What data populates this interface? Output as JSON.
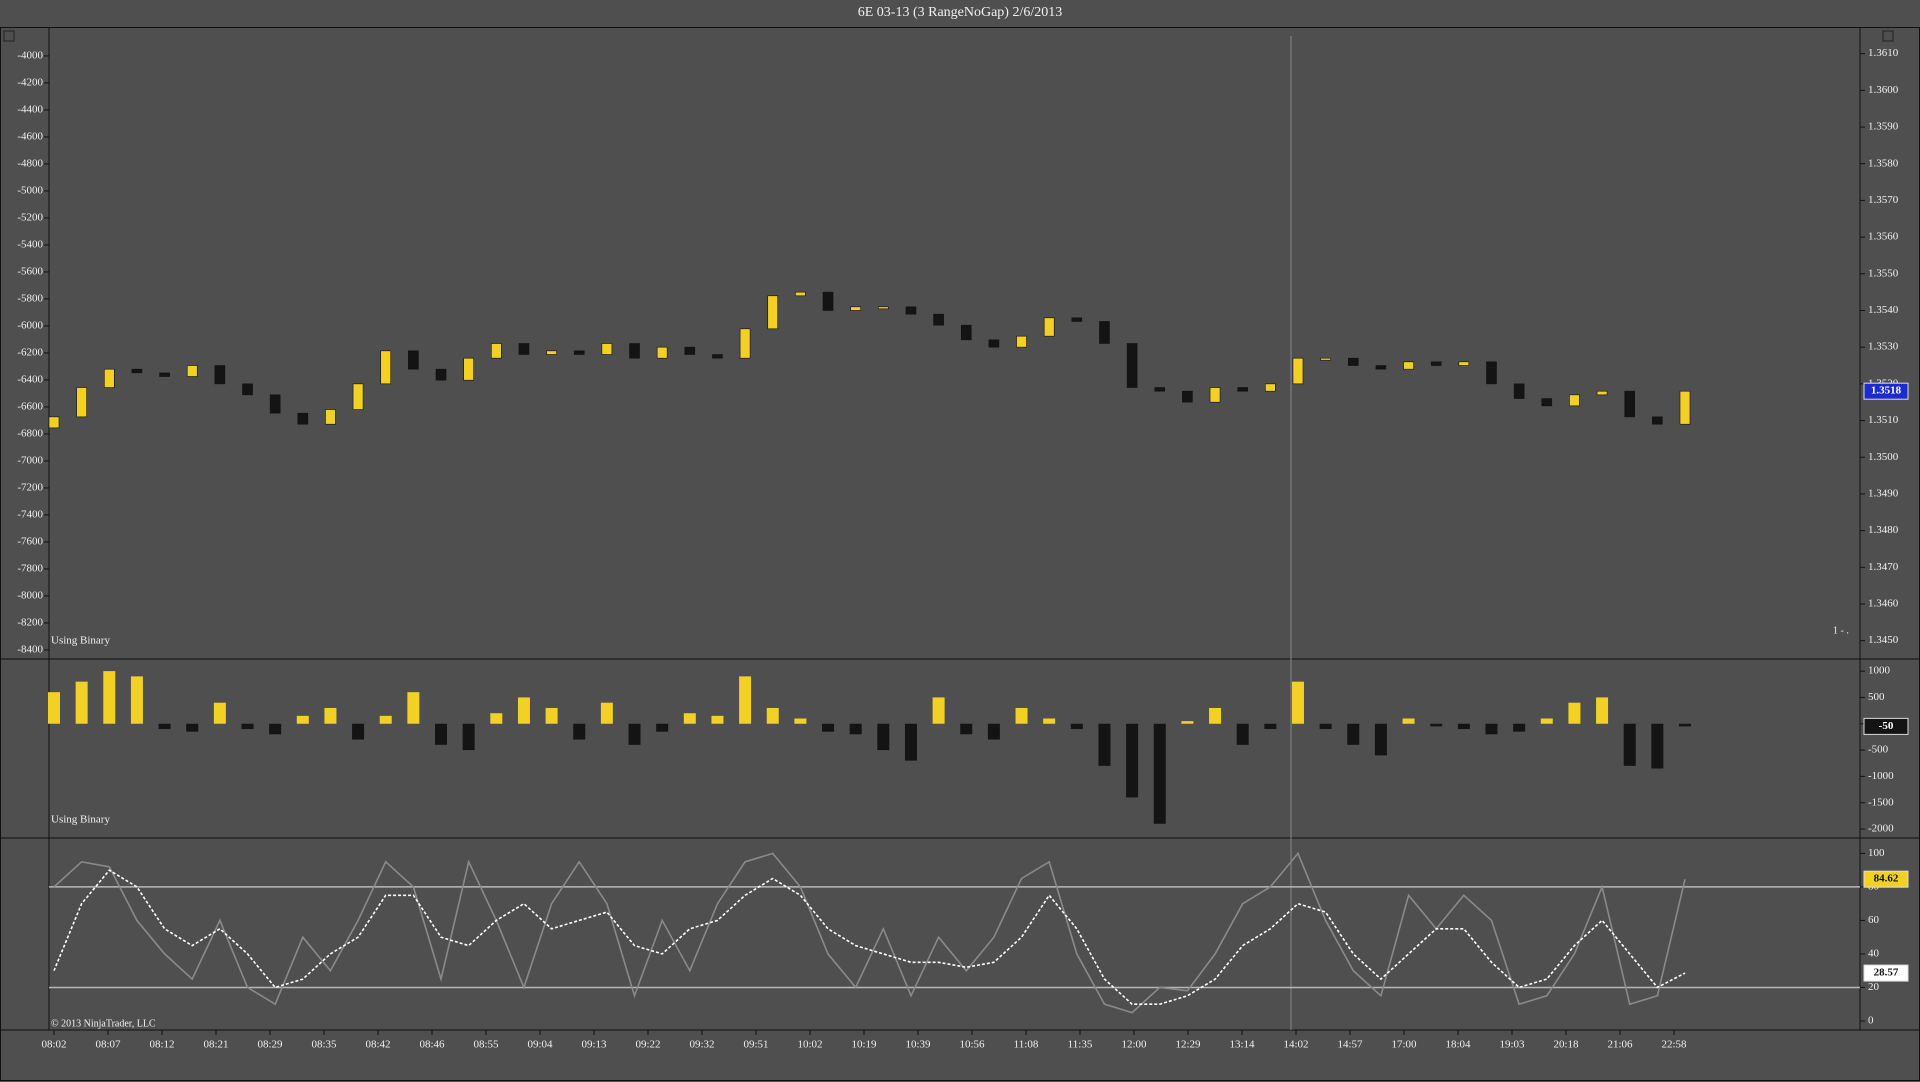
{
  "title": "6E 03-13 (3 RangeNoGap)  2/6/2013",
  "status_text": "1 - .",
  "time_axis": [
    "08:02",
    "08:07",
    "08:12",
    "08:21",
    "08:29",
    "08:35",
    "08:42",
    "08:46",
    "08:55",
    "09:04",
    "09:13",
    "09:22",
    "09:32",
    "09:51",
    "10:02",
    "10:19",
    "10:39",
    "10:56",
    "11:08",
    "11:35",
    "12:00",
    "12:29",
    "13:14",
    "14:02",
    "14:57",
    "17:00",
    "18:04",
    "19:03",
    "20:18",
    "21:06",
    "22:58"
  ],
  "chart_data": [
    {
      "type": "candlestick",
      "annotation": "Using Binary",
      "up_color": "#f2d024",
      "down_color": "#141414",
      "last_color": "#1a2bd0",
      "open": [
        1.3508,
        1.3511,
        1.3519,
        1.3524,
        1.3523,
        1.3522,
        1.3525,
        1.352,
        1.3517,
        1.3512,
        1.3509,
        1.3513,
        1.352,
        1.3529,
        1.3524,
        1.3521,
        1.3527,
        1.3531,
        1.3528,
        1.3529,
        1.3528,
        1.3531,
        1.3527,
        1.353,
        1.3528,
        1.3527,
        1.3535,
        1.3544,
        1.3545,
        1.354,
        1.3541,
        1.3541,
        1.3539,
        1.3536,
        1.3532,
        1.353,
        1.3533,
        1.3538,
        1.3537,
        1.3531,
        1.3519,
        1.3518,
        1.3515,
        1.3519,
        1.3518,
        1.352,
        1.3527,
        1.3527,
        1.3525,
        1.3524,
        1.3526,
        1.3525,
        1.3526,
        1.352,
        1.3516,
        1.3514,
        1.3517,
        1.3518,
        1.3511,
        1.3509
      ],
      "close": [
        1.3511,
        1.3519,
        1.3524,
        1.3523,
        1.3522,
        1.3525,
        1.352,
        1.3517,
        1.3512,
        1.3509,
        1.3513,
        1.352,
        1.3529,
        1.3524,
        1.3521,
        1.3527,
        1.3531,
        1.3528,
        1.3529,
        1.3528,
        1.3531,
        1.3527,
        1.353,
        1.3528,
        1.3527,
        1.3535,
        1.3544,
        1.3545,
        1.354,
        1.3541,
        1.3541,
        1.3539,
        1.3536,
        1.3532,
        1.353,
        1.3533,
        1.3538,
        1.3537,
        1.3531,
        1.3519,
        1.3518,
        1.3515,
        1.3519,
        1.3518,
        1.352,
        1.3527,
        1.3527,
        1.3525,
        1.3524,
        1.3526,
        1.3525,
        1.3526,
        1.352,
        1.3516,
        1.3514,
        1.3517,
        1.3518,
        1.3511,
        1.3509,
        1.3518
      ],
      "ylim": [
        1.3445,
        1.3617
      ],
      "yticks": [
        {
          "value": 1.345,
          "label": "1.3450"
        },
        {
          "value": 1.346,
          "label": "1.3460"
        },
        {
          "value": 1.347,
          "label": "1.3470"
        },
        {
          "value": 1.348,
          "label": "1.3480"
        },
        {
          "value": 1.349,
          "label": "1.3490"
        },
        {
          "value": 1.35,
          "label": "1.3500"
        },
        {
          "value": 1.351,
          "label": "1.3510"
        },
        {
          "value": 1.352,
          "label": "1.3520"
        },
        {
          "value": 1.353,
          "label": "1.3530"
        },
        {
          "value": 1.354,
          "label": "1.3540"
        },
        {
          "value": 1.355,
          "label": "1.3550"
        },
        {
          "value": 1.356,
          "label": "1.3560"
        },
        {
          "value": 1.357,
          "label": "1.3570"
        },
        {
          "value": 1.358,
          "label": "1.3580"
        },
        {
          "value": 1.359,
          "label": "1.3590"
        },
        {
          "value": 1.36,
          "label": "1.3600"
        },
        {
          "value": 1.361,
          "label": "1.3610"
        }
      ],
      "y2lim": [
        -8467,
        -3793
      ],
      "y2ticks": [
        -4000,
        -4200,
        -4400,
        -4600,
        -4800,
        -5000,
        -5200,
        -5400,
        -5600,
        -5800,
        -6000,
        -6200,
        -6400,
        -6600,
        -6800,
        -7000,
        -7200,
        -7400,
        -7600,
        -7800,
        -8000,
        -8200,
        -8400
      ]
    },
    {
      "type": "bar",
      "annotation": "Using Binary",
      "up_color": "#f2d024",
      "down_color": "#141414",
      "last_color": "#141414",
      "values": [
        600,
        800,
        1000,
        900,
        -100,
        -150,
        400,
        -100,
        -200,
        150,
        300,
        -300,
        150,
        600,
        -400,
        -500,
        200,
        500,
        300,
        -300,
        400,
        -400,
        -150,
        200,
        150,
        900,
        300,
        100,
        -150,
        -200,
        -500,
        -700,
        500,
        -200,
        -300,
        300,
        100,
        -100,
        -800,
        -1400,
        -1900,
        50,
        300,
        -400,
        -100,
        800,
        -100,
        -400,
        -600,
        100,
        -50,
        -100,
        -200,
        -150,
        100,
        400,
        500,
        -800,
        -850,
        -50
      ],
      "ylim": [
        -2170,
        1230
      ],
      "yticks": [
        1000,
        500,
        0,
        -500,
        -1000,
        -1500,
        -2000
      ]
    },
    {
      "type": "line",
      "annotation": "© 2013 NinjaTrader, LLC",
      "level_color": "#b8b8b8",
      "levels": [
        80,
        20
      ],
      "series": [
        {
          "color": "#f2d024",
          "line_color": "#8a8a8a",
          "dash": false,
          "values": [
            80,
            95,
            92,
            60,
            40,
            25,
            60,
            20,
            10,
            50,
            30,
            60,
            95,
            80,
            25,
            95,
            60,
            20,
            70,
            95,
            70,
            15,
            60,
            30,
            70,
            95,
            100,
            80,
            40,
            20,
            55,
            15,
            50,
            30,
            50,
            85,
            95,
            40,
            10,
            5,
            20,
            18,
            40,
            70,
            80,
            100,
            60,
            30,
            15,
            75,
            55,
            75,
            60,
            10,
            15,
            40,
            80,
            10,
            15,
            84.62
          ]
        },
        {
          "color": "#ffffff",
          "line_color": "#ffffff",
          "dash": true,
          "values": [
            30,
            70,
            90,
            80,
            55,
            45,
            55,
            40,
            20,
            25,
            40,
            50,
            75,
            75,
            50,
            45,
            60,
            70,
            55,
            60,
            65,
            45,
            40,
            55,
            60,
            75,
            85,
            75,
            55,
            45,
            40,
            35,
            35,
            32,
            35,
            50,
            75,
            55,
            25,
            10,
            10,
            15,
            25,
            45,
            55,
            70,
            65,
            40,
            25,
            40,
            55,
            55,
            35,
            20,
            25,
            45,
            60,
            40,
            20,
            28.57
          ]
        }
      ],
      "ylim": [
        -5.4,
        109.2
      ],
      "yticks": [
        0,
        20,
        40,
        60,
        80,
        100
      ]
    }
  ]
}
